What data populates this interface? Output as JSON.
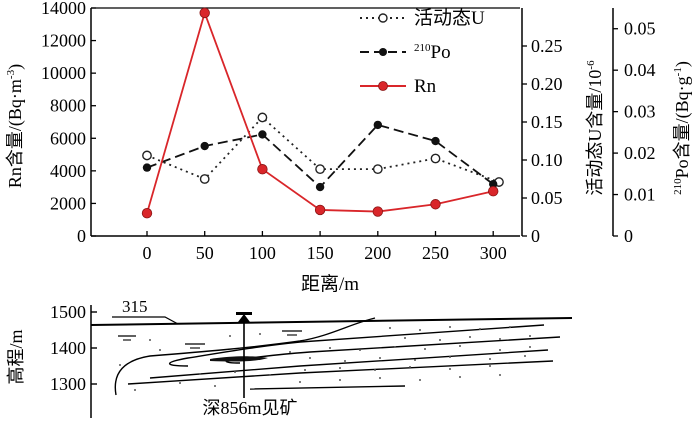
{
  "chart_data": [
    {
      "type": "line",
      "xlabel": "距离/m",
      "x_ticks": [
        "0",
        "50",
        "100",
        "150",
        "200",
        "250",
        "300"
      ],
      "y_left": {
        "label": "Rn含量/(Bq·m⁻³)",
        "label_main": "Rn含量/(Bq·m",
        "label_sup": "-3",
        "label_end": ")",
        "ylim": [
          0,
          14000
        ],
        "ticks": [
          "0",
          "2000",
          "4000",
          "6000",
          "8000",
          "10000",
          "12000",
          "14000"
        ]
      },
      "y_mid": {
        "label": "活动态U含量/10⁻⁶",
        "label_main": "活动态U含量/10",
        "label_sup": "-6",
        "ylim": [
          0,
          0.3
        ],
        "ticks": [
          "0",
          "0.05",
          "0.10",
          "0.15",
          "0.20",
          "0.25"
        ]
      },
      "y_right": {
        "label": "²¹⁰Po含量/(Bq·g⁻¹)",
        "label_sup1": "210",
        "label_main": "Po含量/(Bq·g",
        "label_sup2": "-1",
        "label_end": ")",
        "ylim": [
          0,
          0.055
        ],
        "ticks": [
          "0",
          "0.01",
          "0.02",
          "0.03",
          "0.04",
          "0.05"
        ]
      },
      "series": [
        {
          "name": "活动态U",
          "axis": "mid",
          "style": "dotted-open-circle",
          "color": "#222222",
          "x": [
            0,
            50,
            100,
            150,
            200,
            250,
            305
          ],
          "values": [
            0.106,
            0.075,
            0.156,
            0.088,
            0.088,
            0.102,
            0.071
          ]
        },
        {
          "name": "Po",
          "name_sup": "210",
          "axis": "right",
          "style": "dashed-filled-circle",
          "color": "#111111",
          "x": [
            0,
            50,
            100,
            150,
            200,
            250,
            300
          ],
          "values": [
            0.0165,
            0.0217,
            0.0245,
            0.0118,
            0.0268,
            0.0229,
            0.0125
          ]
        },
        {
          "name": "Rn",
          "axis": "left",
          "style": "solid-red-circle",
          "color": "#d9262a",
          "x": [
            0,
            50,
            100,
            150,
            200,
            250,
            300
          ],
          "values": [
            1400,
            13700,
            4100,
            1600,
            1500,
            1950,
            2750
          ]
        }
      ]
    },
    {
      "type": "diagram",
      "ylabel": "高程/m",
      "y_ticks": [
        "1500",
        "1400",
        "1300"
      ],
      "label_315": "315",
      "label_depth": "深856m见矿"
    }
  ]
}
